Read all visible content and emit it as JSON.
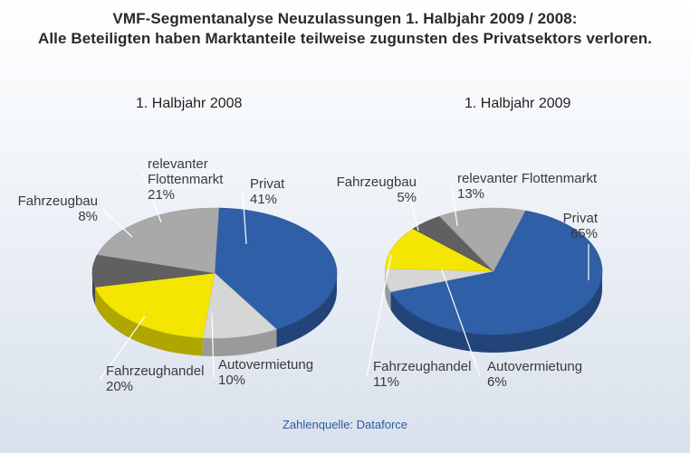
{
  "title_line1": "VMF-Segmentanalyse Neuzulassungen 1. Halbjahr 2009 / 2008:",
  "title_line2": "Alle Beteiligten haben Marktanteile teilweise zugunsten des Privatsektors verloren.",
  "source": "Zahlenquelle: Dataforce",
  "chart_data": [
    {
      "type": "pie",
      "title": "1. Halbjahr 2008",
      "categories": [
        "Privat",
        "Autovermietung",
        "Fahrzeughandel",
        "Fahrzeugbau",
        "relevanter Flottenmarkt"
      ],
      "values": [
        41,
        10,
        20,
        8,
        21
      ],
      "value_labels": [
        "41%",
        "10%",
        "20%",
        "8%",
        "21%"
      ],
      "colors": [
        "#2f5fa6",
        "#d6d6d6",
        "#f4e600",
        "#606060",
        "#a9a9a9"
      ]
    },
    {
      "type": "pie",
      "title": "1. Halbjahr 2009",
      "categories": [
        "Privat",
        "Autovermietung",
        "Fahrzeughandel",
        "Fahrzeugbau",
        "relevanter Flottenmarkt"
      ],
      "values": [
        65,
        6,
        11,
        5,
        13
      ],
      "value_labels": [
        "65%",
        "6%",
        "11%",
        "5%",
        "13%"
      ],
      "colors": [
        "#2f5fa6",
        "#d6d6d6",
        "#f4e600",
        "#606060",
        "#a9a9a9"
      ]
    }
  ]
}
